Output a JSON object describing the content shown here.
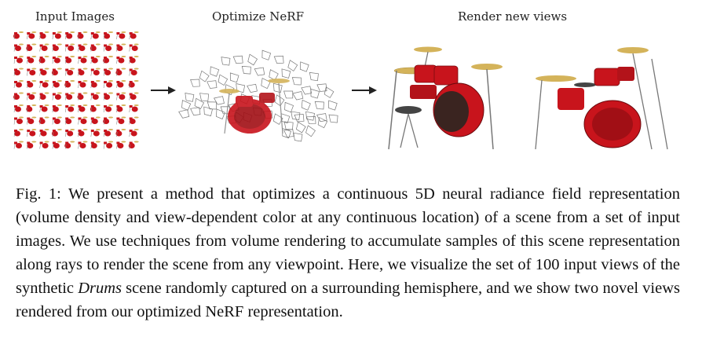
{
  "panels": {
    "input_label": "Input Images",
    "optimize_label": "Optimize NeRF",
    "render_label": "Render new views"
  },
  "caption": {
    "fig_label": "Fig. 1:",
    "text_part1": " We present a method that optimizes a continuous 5D neural radiance field representation (volume density and view-dependent color at any continuous location) of a scene from a set of input images. We use techniques from volume rendering to accumulate samples of this scene representation along rays to render the scene from any viewpoint. Here, we visualize the set of 100 input views of the synthetic ",
    "scene_name": "Drums",
    "text_part2": " scene randomly captured on a surrounding hemisphere, and we show two novel views rendered from our optimized NeRF representation."
  },
  "colors": {
    "drum_red": "#c8141c",
    "cymbal_gold": "#d4b35a",
    "chrome": "#9a9a9a",
    "text": "#111111"
  },
  "icons": [
    "arrow-right-icon",
    "camera-frustum-icon"
  ]
}
